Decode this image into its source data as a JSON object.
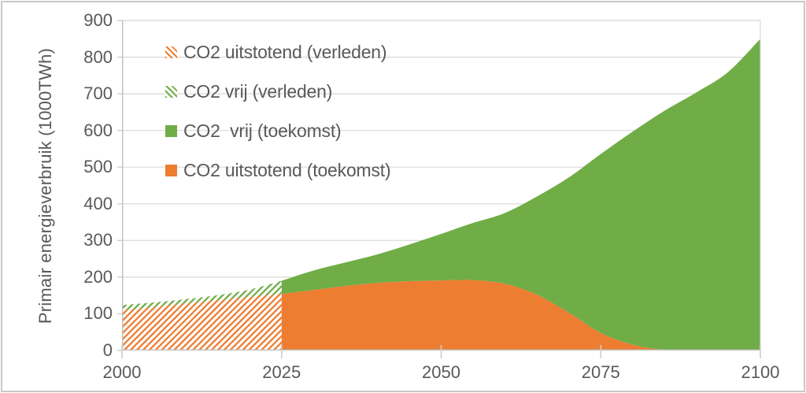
{
  "chart": {
    "y_axis_title": "Primair energieverbruik (1000TWh)",
    "colors": {
      "orange": "#ED7D31",
      "green": "#70AD47",
      "text": "#595959",
      "gridline": "#D9D9D9",
      "axis": "#BFBFBF",
      "tick": "#CDCDCD",
      "frame_border": "#C9C9C9",
      "background": "#FFFFFF"
    },
    "legend": [
      {
        "label": "CO2 uitstotend (verleden)",
        "swatch": "hatch-orange"
      },
      {
        "label": "CO2 vrij (verleden)",
        "swatch": "hatch-green"
      },
      {
        "label": "CO2  vrij (toekomst)",
        "swatch": "solid-green"
      },
      {
        "label": "CO2 uitstotend (toekomst)",
        "swatch": "solid-orange"
      }
    ]
  },
  "chart_data": {
    "type": "area",
    "stacked": true,
    "title": "",
    "xlabel": "",
    "ylabel": "Primair energieverbruik (1000TWh)",
    "units": "1000TWh",
    "xlim": [
      2000,
      2100
    ],
    "ylim": [
      0,
      900
    ],
    "x_ticks": [
      2000,
      2025,
      2050,
      2075,
      2100
    ],
    "y_ticks": [
      0,
      100,
      200,
      300,
      400,
      500,
      600,
      700,
      800,
      900
    ],
    "grid": true,
    "legend_position": "top-left inside plot",
    "past_future_boundary_year": 2025,
    "past_style": "diagonal-hatched",
    "future_style": "solid",
    "x": [
      2000,
      2005,
      2010,
      2015,
      2020,
      2025,
      2030,
      2035,
      2040,
      2045,
      2050,
      2055,
      2060,
      2065,
      2070,
      2075,
      2080,
      2085,
      2090,
      2095,
      2100
    ],
    "series": [
      {
        "name": "CO2 uitstotend",
        "color": "#ED7D31",
        "values": [
          110,
          119,
          128,
          137,
          146,
          154,
          165,
          176,
          184,
          189,
          191,
          192,
          182,
          152,
          103,
          48,
          16,
          2,
          0,
          0,
          0
        ]
      },
      {
        "name": "CO2 vrij",
        "color": "#70AD47",
        "values": [
          14,
          12,
          12,
          14,
          20,
          36,
          53,
          64,
          78,
          100,
          127,
          156,
          193,
          268,
          369,
          488,
          581,
          652,
          704,
          760,
          850
        ]
      }
    ]
  }
}
